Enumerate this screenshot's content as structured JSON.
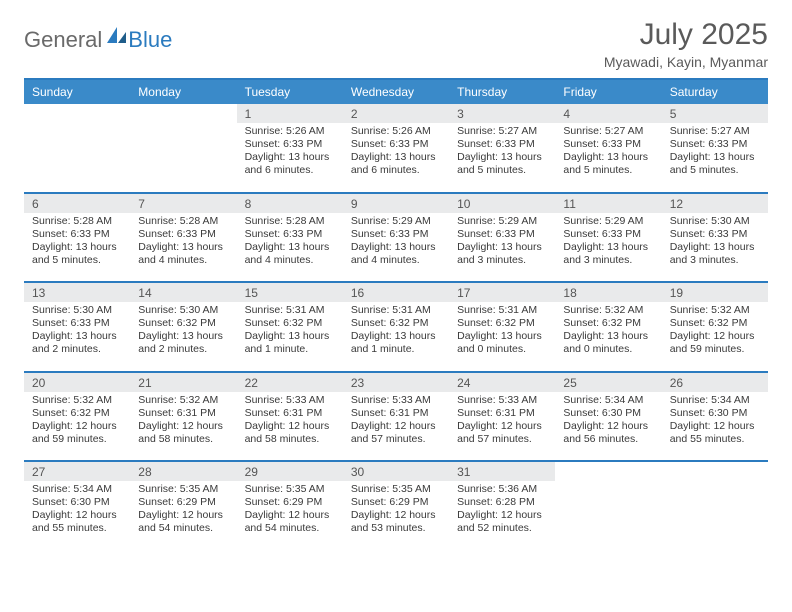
{
  "logo": {
    "word1": "General",
    "word2": "Blue"
  },
  "title": "July 2025",
  "subtitle": "Myawadi, Kayin, Myanmar",
  "colors": {
    "header_bg": "#3a8ac9",
    "rule": "#2b7bbf",
    "daynum_bg": "#e9eaeb",
    "text": "#333333",
    "title_text": "#5a5a5a"
  },
  "day_headers": [
    "Sunday",
    "Monday",
    "Tuesday",
    "Wednesday",
    "Thursday",
    "Friday",
    "Saturday"
  ],
  "weeks": [
    [
      null,
      null,
      {
        "n": "1",
        "sunrise": "5:26 AM",
        "sunset": "6:33 PM",
        "daylight": "13 hours and 6 minutes."
      },
      {
        "n": "2",
        "sunrise": "5:26 AM",
        "sunset": "6:33 PM",
        "daylight": "13 hours and 6 minutes."
      },
      {
        "n": "3",
        "sunrise": "5:27 AM",
        "sunset": "6:33 PM",
        "daylight": "13 hours and 5 minutes."
      },
      {
        "n": "4",
        "sunrise": "5:27 AM",
        "sunset": "6:33 PM",
        "daylight": "13 hours and 5 minutes."
      },
      {
        "n": "5",
        "sunrise": "5:27 AM",
        "sunset": "6:33 PM",
        "daylight": "13 hours and 5 minutes."
      }
    ],
    [
      {
        "n": "6",
        "sunrise": "5:28 AM",
        "sunset": "6:33 PM",
        "daylight": "13 hours and 5 minutes."
      },
      {
        "n": "7",
        "sunrise": "5:28 AM",
        "sunset": "6:33 PM",
        "daylight": "13 hours and 4 minutes."
      },
      {
        "n": "8",
        "sunrise": "5:28 AM",
        "sunset": "6:33 PM",
        "daylight": "13 hours and 4 minutes."
      },
      {
        "n": "9",
        "sunrise": "5:29 AM",
        "sunset": "6:33 PM",
        "daylight": "13 hours and 4 minutes."
      },
      {
        "n": "10",
        "sunrise": "5:29 AM",
        "sunset": "6:33 PM",
        "daylight": "13 hours and 3 minutes."
      },
      {
        "n": "11",
        "sunrise": "5:29 AM",
        "sunset": "6:33 PM",
        "daylight": "13 hours and 3 minutes."
      },
      {
        "n": "12",
        "sunrise": "5:30 AM",
        "sunset": "6:33 PM",
        "daylight": "13 hours and 3 minutes."
      }
    ],
    [
      {
        "n": "13",
        "sunrise": "5:30 AM",
        "sunset": "6:33 PM",
        "daylight": "13 hours and 2 minutes."
      },
      {
        "n": "14",
        "sunrise": "5:30 AM",
        "sunset": "6:32 PM",
        "daylight": "13 hours and 2 minutes."
      },
      {
        "n": "15",
        "sunrise": "5:31 AM",
        "sunset": "6:32 PM",
        "daylight": "13 hours and 1 minute."
      },
      {
        "n": "16",
        "sunrise": "5:31 AM",
        "sunset": "6:32 PM",
        "daylight": "13 hours and 1 minute."
      },
      {
        "n": "17",
        "sunrise": "5:31 AM",
        "sunset": "6:32 PM",
        "daylight": "13 hours and 0 minutes."
      },
      {
        "n": "18",
        "sunrise": "5:32 AM",
        "sunset": "6:32 PM",
        "daylight": "13 hours and 0 minutes."
      },
      {
        "n": "19",
        "sunrise": "5:32 AM",
        "sunset": "6:32 PM",
        "daylight": "12 hours and 59 minutes."
      }
    ],
    [
      {
        "n": "20",
        "sunrise": "5:32 AM",
        "sunset": "6:32 PM",
        "daylight": "12 hours and 59 minutes."
      },
      {
        "n": "21",
        "sunrise": "5:32 AM",
        "sunset": "6:31 PM",
        "daylight": "12 hours and 58 minutes."
      },
      {
        "n": "22",
        "sunrise": "5:33 AM",
        "sunset": "6:31 PM",
        "daylight": "12 hours and 58 minutes."
      },
      {
        "n": "23",
        "sunrise": "5:33 AM",
        "sunset": "6:31 PM",
        "daylight": "12 hours and 57 minutes."
      },
      {
        "n": "24",
        "sunrise": "5:33 AM",
        "sunset": "6:31 PM",
        "daylight": "12 hours and 57 minutes."
      },
      {
        "n": "25",
        "sunrise": "5:34 AM",
        "sunset": "6:30 PM",
        "daylight": "12 hours and 56 minutes."
      },
      {
        "n": "26",
        "sunrise": "5:34 AM",
        "sunset": "6:30 PM",
        "daylight": "12 hours and 55 minutes."
      }
    ],
    [
      {
        "n": "27",
        "sunrise": "5:34 AM",
        "sunset": "6:30 PM",
        "daylight": "12 hours and 55 minutes."
      },
      {
        "n": "28",
        "sunrise": "5:35 AM",
        "sunset": "6:29 PM",
        "daylight": "12 hours and 54 minutes."
      },
      {
        "n": "29",
        "sunrise": "5:35 AM",
        "sunset": "6:29 PM",
        "daylight": "12 hours and 54 minutes."
      },
      {
        "n": "30",
        "sunrise": "5:35 AM",
        "sunset": "6:29 PM",
        "daylight": "12 hours and 53 minutes."
      },
      {
        "n": "31",
        "sunrise": "5:36 AM",
        "sunset": "6:28 PM",
        "daylight": "12 hours and 52 minutes."
      },
      null,
      null
    ]
  ],
  "labels": {
    "sunrise": "Sunrise: ",
    "sunset": "Sunset: ",
    "daylight": "Daylight: "
  }
}
